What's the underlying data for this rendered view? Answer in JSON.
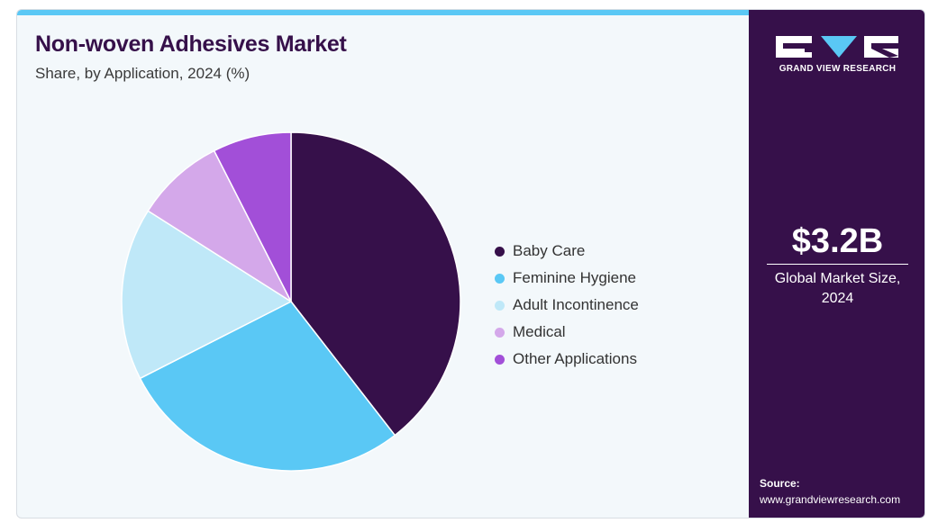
{
  "header": {
    "title": "Non-woven Adhesives Market",
    "subtitle": "Share, by Application, 2024 (%)"
  },
  "sidebar": {
    "logo_text": "GRAND VIEW RESEARCH",
    "market_value": "$3.2B",
    "market_caption_line1": "Global Market Size,",
    "market_caption_line2": "2024",
    "source_label": "Source:",
    "source_url": "www.grandviewresearch.com"
  },
  "colors": {
    "brand_purple": "#36104a",
    "accent_blue": "#5ac8f5"
  },
  "chart_data": {
    "type": "pie",
    "title": "Non-woven Adhesives Market",
    "subtitle": "Share, by Application, 2024 (%)",
    "legend_placement": "right",
    "categories": [
      "Baby Care",
      "Feminine Hygiene",
      "Adult Incontinence",
      "Medical",
      "Other Applications"
    ],
    "values": [
      39.5,
      28,
      16.5,
      8.5,
      7.5
    ],
    "colors": [
      "#36104a",
      "#5ac8f5",
      "#bfe8f8",
      "#d4a8ea",
      "#a24fd8"
    ]
  }
}
